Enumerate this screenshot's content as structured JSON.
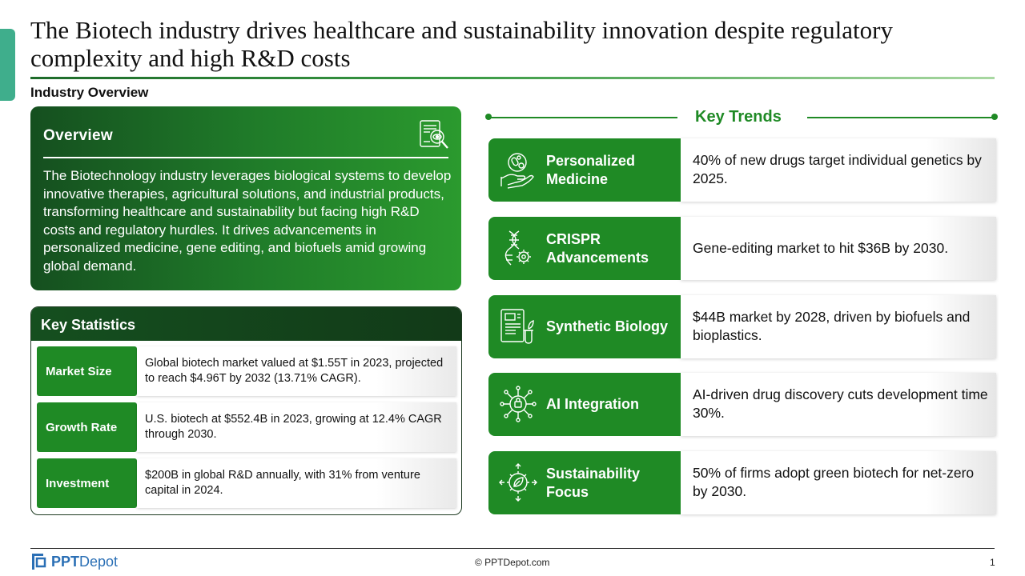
{
  "title": "The Biotech industry drives healthcare and sustainability innovation despite regulatory complexity and high R&D costs",
  "subtitle": "Industry Overview",
  "overview": {
    "heading": "Overview",
    "icon": "document-search-icon",
    "text": "The Biotechnology industry leverages biological systems to develop innovative therapies, agricultural solutions, and industrial products, transforming healthcare and sustainability but facing high R&D costs and regulatory hurdles. It drives advancements in personalized medicine, gene editing, and biofuels amid growing global demand."
  },
  "key_statistics": {
    "heading": "Key Statistics",
    "rows": [
      {
        "label": "Market Size",
        "text": "Global biotech market valued at $1.55T in 2023, projected to reach $4.96T by 2032 (13.71% CAGR)."
      },
      {
        "label": "Growth Rate",
        "text": "U.S. biotech at $552.4B in 2023, growing at 12.4% CAGR through 2030."
      },
      {
        "label": "Investment",
        "text": "$200B in global R&D annually, with 31% from venture capital in 2024."
      }
    ]
  },
  "key_trends": {
    "heading": "Key Trends",
    "items": [
      {
        "label": "Personalized Medicine",
        "icon": "hand-pills-icon",
        "text": "40% of new drugs target individual genetics by 2025."
      },
      {
        "label": "CRISPR Advancements",
        "icon": "dna-gear-icon",
        "text": "Gene-editing market to hit $36B by 2030."
      },
      {
        "label": "Synthetic Biology",
        "icon": "lab-report-icon",
        "text": "$44B market by 2028, driven by biofuels and bioplastics."
      },
      {
        "label": "AI Integration",
        "icon": "ai-chip-icon",
        "text": "AI-driven drug discovery cuts development time 30%."
      },
      {
        "label": "Sustainability Focus",
        "icon": "eco-gear-icon",
        "text": "50% of firms adopt green biotech for net-zero by 2030."
      }
    ]
  },
  "footer": {
    "logo_main": "PPT",
    "logo_sub": "Depot",
    "copyright": "© PPTDepot.com",
    "page_number": "1"
  },
  "colors": {
    "accent_green": "#1f8a25",
    "dark_green": "#154f1f",
    "side_tab": "#3fae8c",
    "logo_blue": "#2a6fb5"
  }
}
